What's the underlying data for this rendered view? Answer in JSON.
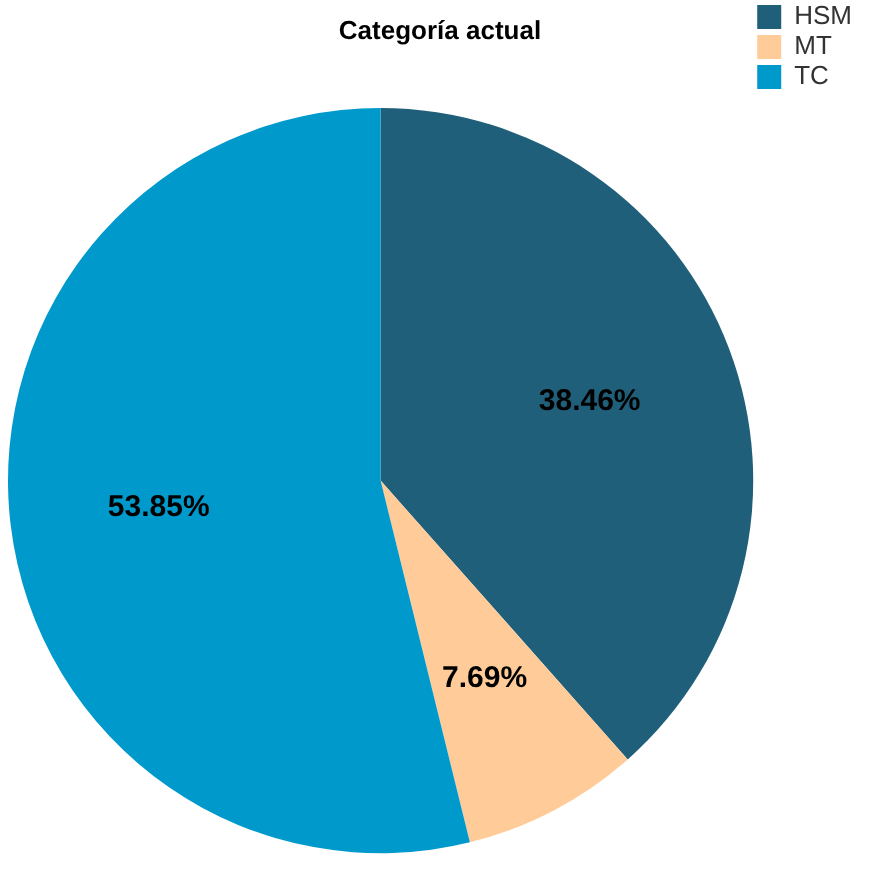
{
  "chart_data": {
    "type": "pie",
    "title": "Categoría actual",
    "categories": [
      "HSM",
      "MT",
      "TC"
    ],
    "values": [
      38.46,
      7.69,
      53.85
    ],
    "colors": [
      "#1f5f79",
      "#ffcc99",
      "#0099cc"
    ],
    "value_labels": [
      "38.46%",
      "7.69%",
      "53.85%"
    ],
    "legend": "top right"
  }
}
